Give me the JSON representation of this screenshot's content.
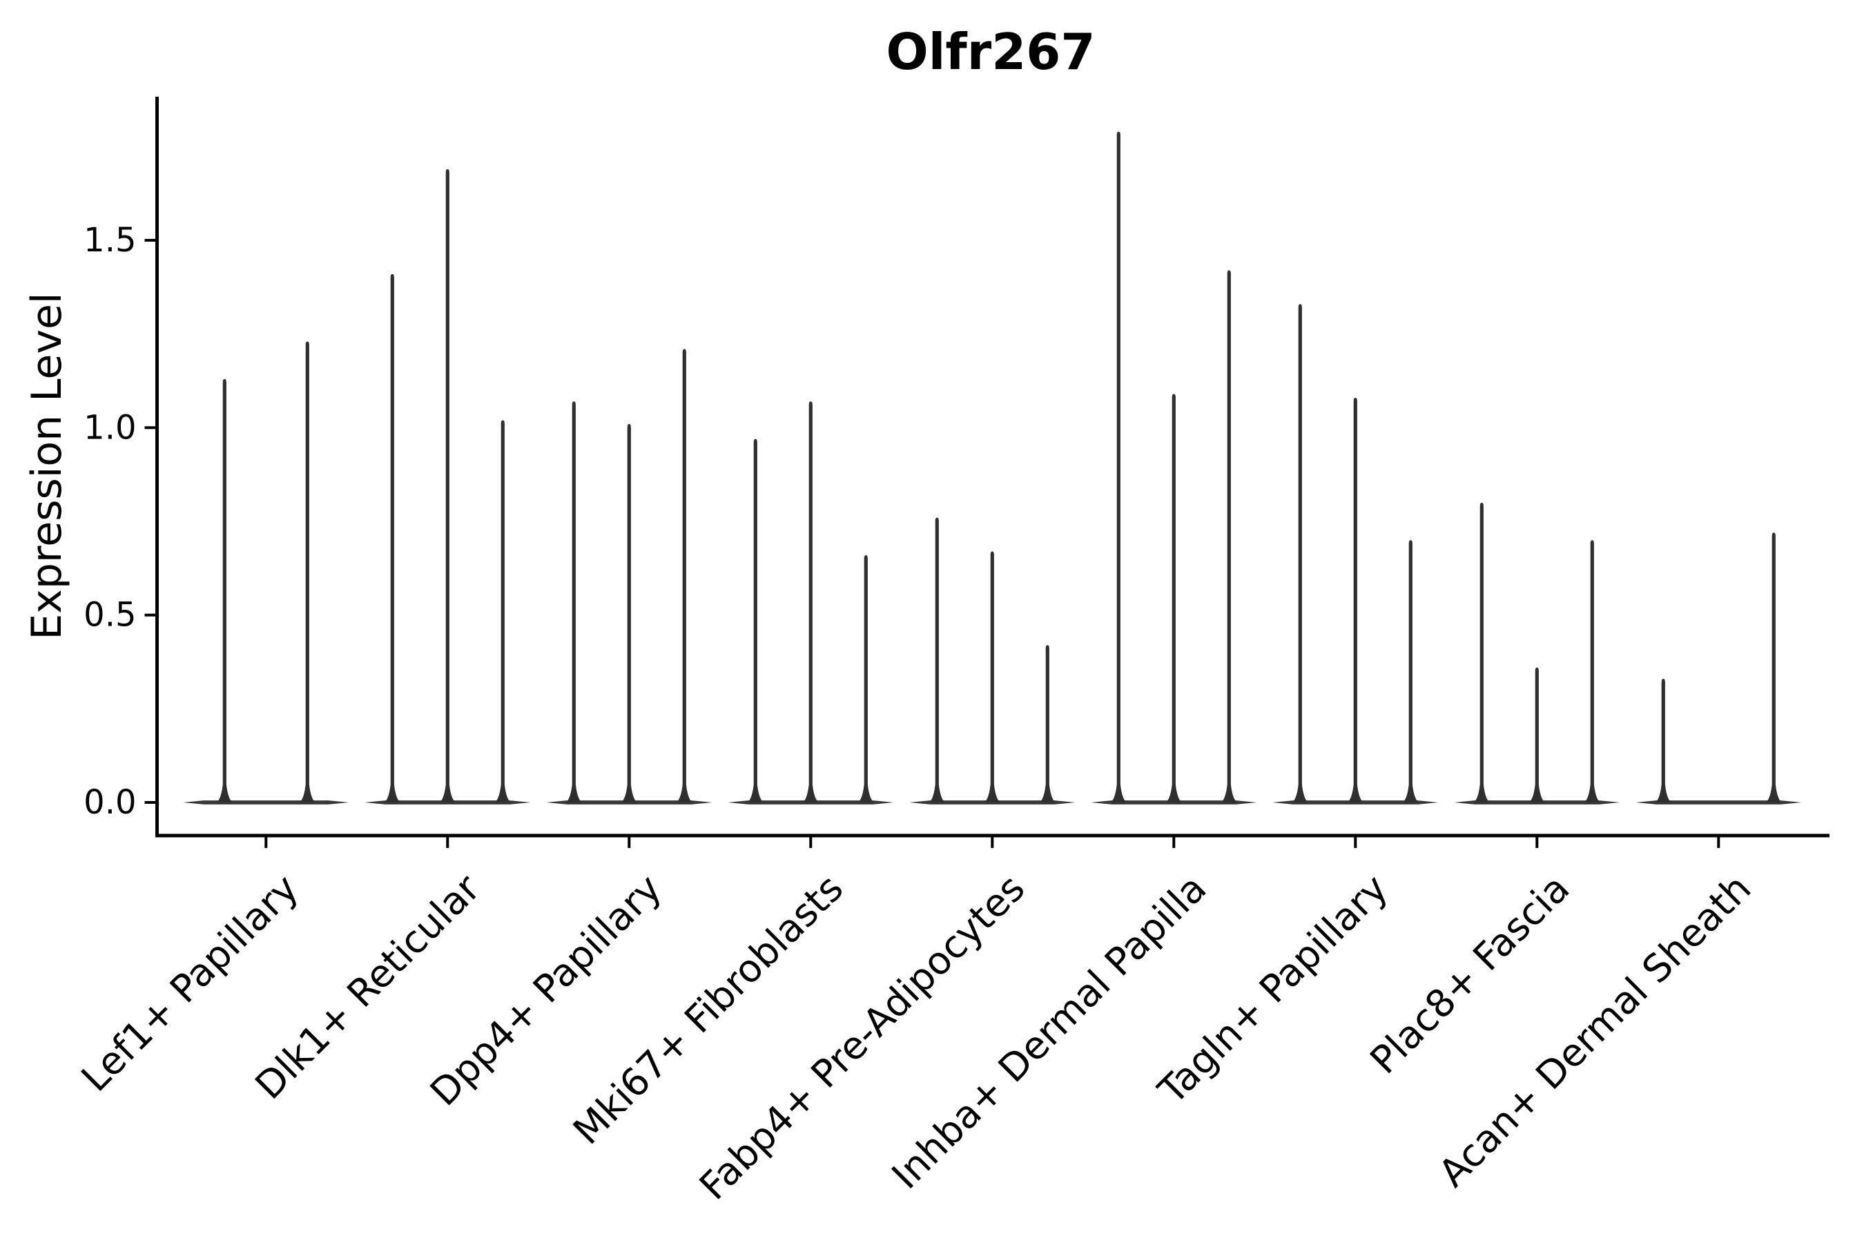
{
  "title": "Olfr267",
  "axes": {
    "ylabel": "Expression Level",
    "ytick_labels": [
      "0.0",
      "0.5",
      "1.0",
      "1.5"
    ]
  },
  "colors": {
    "background": "#ffffff",
    "axis": "#000000",
    "violin_stroke": "#2f2f2f",
    "baseline_stroke": "#383838"
  },
  "chart_data": {
    "type": "violin",
    "title": "Olfr267",
    "xlabel": "",
    "ylabel": "Expression Level",
    "ylim": [
      0,
      1.88
    ],
    "yticks": [
      0.0,
      0.5,
      1.0,
      1.5
    ],
    "grid": false,
    "legend_position": "none",
    "categories": [
      "Lef1+ Papillary",
      "Dlk1+ Reticular",
      "Dpp4+ Papillary",
      "Mki67+ Fibroblasts",
      "Fabp4+ Pre-Adipocytes",
      "Inhba+ Dermal Papilla",
      "Tagln+ Papillary",
      "Plac8+ Fascia",
      "Acan+ Dermal Sheath"
    ],
    "groups": [
      {
        "category": "Lef1+ Papillary",
        "violin_peaks": [
          1.13,
          1.23
        ]
      },
      {
        "category": "Dlk1+ Reticular",
        "violin_peaks": [
          1.41,
          1.69,
          1.02
        ]
      },
      {
        "category": "Dpp4+ Papillary",
        "violin_peaks": [
          1.07,
          1.01,
          1.21
        ]
      },
      {
        "category": "Mki67+ Fibroblasts",
        "violin_peaks": [
          0.97,
          1.07,
          0.66
        ]
      },
      {
        "category": "Fabp4+ Pre-Adipocytes",
        "violin_peaks": [
          0.76,
          0.67,
          0.42
        ]
      },
      {
        "category": "Inhba+ Dermal Papilla",
        "violin_peaks": [
          1.79,
          1.09,
          1.42
        ]
      },
      {
        "category": "Tagln+ Papillary",
        "violin_peaks": [
          1.33,
          1.08,
          0.7
        ]
      },
      {
        "category": "Plac8+ Fascia",
        "violin_peaks": [
          0.8,
          0.36,
          0.7
        ]
      },
      {
        "category": "Acan+ Dermal Sheath",
        "violin_peaks": [
          0.33,
          0.0,
          0.72
        ]
      }
    ],
    "note": "Each group shows one thin violin (spike) per sample; a peak of 0.0 means a flat violin (all-zero expression) visible only as the baseline."
  }
}
